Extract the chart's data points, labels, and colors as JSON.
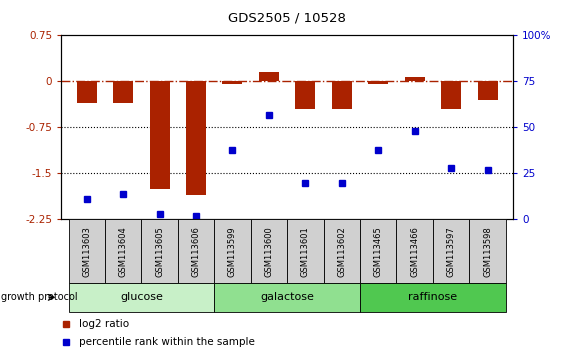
{
  "title": "GDS2505 / 10528",
  "samples": [
    "GSM113603",
    "GSM113604",
    "GSM113605",
    "GSM113606",
    "GSM113599",
    "GSM113600",
    "GSM113601",
    "GSM113602",
    "GSM113465",
    "GSM113466",
    "GSM113597",
    "GSM113598"
  ],
  "log2_ratio": [
    -0.35,
    -0.35,
    -1.75,
    -1.85,
    -0.05,
    0.15,
    -0.45,
    -0.45,
    -0.05,
    0.07,
    -0.45,
    -0.3
  ],
  "percentile_rank": [
    11,
    14,
    3,
    2,
    38,
    57,
    20,
    20,
    38,
    48,
    28,
    27
  ],
  "groups": [
    {
      "label": "glucose",
      "start": 0,
      "end": 4,
      "color": "#c8f0c8"
    },
    {
      "label": "galactose",
      "start": 4,
      "end": 8,
      "color": "#90e090"
    },
    {
      "label": "raffinose",
      "start": 8,
      "end": 12,
      "color": "#50c850"
    }
  ],
  "bar_color": "#aa2200",
  "dot_color": "#0000cc",
  "ylim_left": [
    -2.25,
    0.75
  ],
  "ylim_right": [
    0,
    100
  ],
  "dotted_lines": [
    -0.75,
    -1.5
  ],
  "left_yticks": [
    -2.25,
    -1.5,
    -0.75,
    0,
    0.75
  ],
  "left_yticklabels": [
    "-2.25",
    "-1.5",
    "-0.75",
    "0",
    "0.75"
  ],
  "right_yticks": [
    0,
    25,
    50,
    75,
    100
  ],
  "right_yticklabels": [
    "0",
    "25",
    "50",
    "75",
    "100%"
  ]
}
